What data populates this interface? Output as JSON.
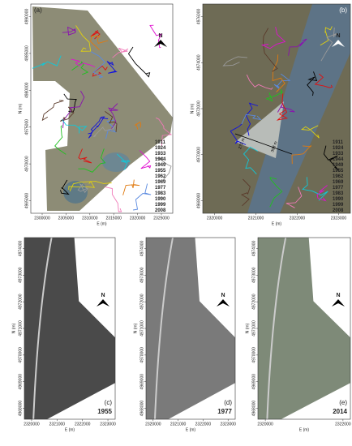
{
  "panels": [
    {
      "label": "(a)",
      "x_axis": {
        "title": "E (m)",
        "ticks": [
          "2300000",
          "2305000",
          "2310000",
          "2315000",
          "2320000",
          "2325000"
        ]
      },
      "y_axis": {
        "title": "N (m)",
        "ticks": [
          "4990000",
          "4985000",
          "4980000",
          "4975000",
          "4970000",
          "4965000"
        ]
      },
      "north": "N",
      "legend": [
        {
          "year": "1911",
          "color": "#1010e0"
        },
        {
          "year": "1924",
          "color": "#000000"
        },
        {
          "year": "1933",
          "color": "#8a10b0"
        },
        {
          "year": "1944",
          "color": "#20c020"
        },
        {
          "year": "1949",
          "color": "#f07ab8"
        },
        {
          "year": "1955",
          "color": "#e01010"
        },
        {
          "year": "1962",
          "color": "#5a8ae0"
        },
        {
          "year": "1969",
          "color": "#e07a10"
        },
        {
          "year": "1977",
          "color": "#e0d010"
        },
        {
          "year": "1983",
          "color": "#5a3a2a"
        },
        {
          "year": "1990",
          "color": "#9a9a9a"
        },
        {
          "year": "1999",
          "color": "#10c8d8"
        },
        {
          "year": "2008",
          "color": "#e010d0"
        }
      ]
    },
    {
      "label": "(b)",
      "x_axis": {
        "title": "E (m)",
        "ticks": [
          "2320000",
          "2321000",
          "2322000",
          "2323000"
        ]
      },
      "y_axis": {
        "title": "N (m)",
        "ticks": [
          "4976000",
          "4974000",
          "4972000",
          "4970000",
          "4968000"
        ]
      },
      "north": "N",
      "annotations": [
        "272 m",
        "398 m"
      ],
      "legend": [
        {
          "year": "1911",
          "color": "#1010e0"
        },
        {
          "year": "1924",
          "color": "#000000"
        },
        {
          "year": "1933",
          "color": "#8a10b0"
        },
        {
          "year": "1944",
          "color": "#20c020"
        },
        {
          "year": "1949",
          "color": "#f07ab8"
        },
        {
          "year": "1955",
          "color": "#e01010"
        },
        {
          "year": "1962",
          "color": "#5a8ae0"
        },
        {
          "year": "1969",
          "color": "#e07a10"
        },
        {
          "year": "1977",
          "color": "#e0d010"
        },
        {
          "year": "1983",
          "color": "#5a3a2a"
        },
        {
          "year": "1990",
          "color": "#9a9a9a"
        },
        {
          "year": "1999",
          "color": "#10c8d8"
        },
        {
          "year": "2008",
          "color": "#e010d0"
        }
      ]
    },
    {
      "label": "(c)",
      "year": "1955",
      "x_axis": {
        "title": "E (m)",
        "ticks": [
          "2320000",
          "2321000",
          "2322000",
          "2323000"
        ]
      },
      "y_axis": {
        "title": "N (m)",
        "ticks": [
          "4974000",
          "4973000",
          "4972000",
          "4971000",
          "4970000",
          "4969000",
          "4968000"
        ]
      },
      "north": "N"
    },
    {
      "label": "(d)",
      "year": "1977",
      "x_axis": {
        "title": "E (m)",
        "ticks": [
          "2320000",
          "2321000",
          "2322000",
          "2323000"
        ]
      },
      "y_axis": {
        "title": "N (m)",
        "ticks": [
          "4974000",
          "4973000",
          "4972000",
          "4971000",
          "4970000",
          "4969000",
          "4968000"
        ]
      },
      "north": "N"
    },
    {
      "label": "(e)",
      "year": "2014",
      "x_axis": {
        "title": "E (m)",
        "ticks": [
          "2320000",
          "2322000"
        ]
      },
      "y_axis": {
        "title": "N (m)",
        "ticks": [
          "4974000",
          "4973000",
          "4972000",
          "4971000",
          "4970000",
          "4969000",
          "4968000"
        ]
      },
      "north": "N"
    }
  ]
}
